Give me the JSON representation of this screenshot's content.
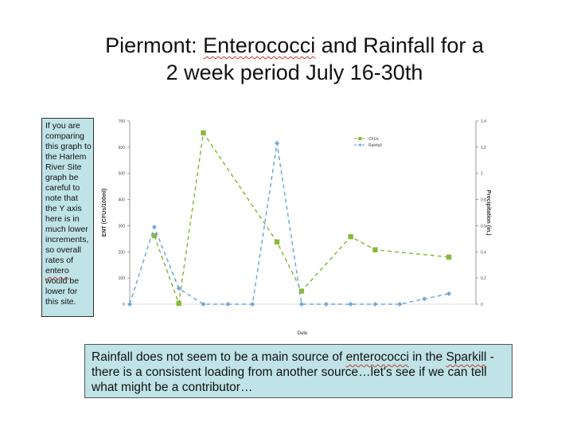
{
  "title": {
    "line1_before": "Piermont: ",
    "line1_underlined": "Enterococci",
    "line1_after": " and Rainfall for a",
    "line2": "2 week period July 16-30th"
  },
  "side_note": {
    "before": "If you are comparing this graph to the Harlem River Site graph be careful to note that the Y axis here is in much lower increments, so overall rates of ",
    "underlined": "entero",
    "after": " would be lower for this site."
  },
  "bottom_note": {
    "before": "Rainfall does not seem to be a main source of ",
    "underlined1": "enterococci",
    "mid": " in the ",
    "underlined2": "Sparkill",
    "after": " - there is a consistent loading from another source…let's see if we can tell what might be a contributor…"
  },
  "chart_data": {
    "type": "line",
    "xlabel": "Date",
    "ylabel": "ENT (CFUs/100ml)",
    "y2label": "Precipitation (in.)",
    "ylim": [
      0,
      700
    ],
    "y2lim": [
      0,
      1.4
    ],
    "yticks": [
      "0",
      "100",
      "200",
      "300",
      "400",
      "500",
      "600",
      "700"
    ],
    "y2ticks": [
      "0",
      "0.2",
      "0.4",
      "0.6",
      "0.8",
      "1",
      "1.2",
      "1.4"
    ],
    "x_count": 14,
    "legend_position": "top-right",
    "series": [
      {
        "name": "CFUs",
        "axis": "left",
        "color": "#8ab83a",
        "x": [
          1,
          2,
          3,
          6,
          7,
          9,
          10,
          13
        ],
        "values": [
          262,
          3,
          655,
          238,
          50,
          258,
          208,
          180
        ]
      },
      {
        "name": "Rainfall",
        "axis": "right",
        "color": "#6fa8dc",
        "x": [
          0,
          1,
          2,
          3,
          4,
          5,
          6,
          7,
          8,
          9,
          10,
          11,
          12,
          13
        ],
        "values": [
          0,
          0.59,
          0.12,
          0,
          0,
          0,
          1.23,
          0,
          0,
          0,
          0,
          0,
          0.04,
          0.08
        ]
      }
    ]
  }
}
